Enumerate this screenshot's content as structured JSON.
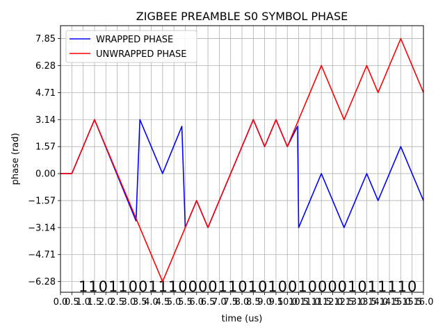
{
  "chart_data": {
    "type": "line",
    "title": "ZIGBEE PREAMBLE S0 SYMBOL PHASE",
    "xlabel": "time (us)",
    "ylabel": "phase (rad)",
    "xlim": [
      0,
      16
    ],
    "ylim": [
      -6.9,
      8.6
    ],
    "grid": true,
    "legend_position": "top-left",
    "xticks": [
      0,
      0.5,
      1,
      1.5,
      2,
      2.5,
      3,
      3.5,
      4,
      4.5,
      5,
      5.5,
      6,
      6.5,
      7,
      7.5,
      8,
      8.5,
      9,
      9.5,
      10,
      10.5,
      11,
      11.5,
      12,
      12.5,
      13,
      13.5,
      14,
      14.5,
      15,
      15.5,
      16
    ],
    "xtick_labels": [
      "0.0",
      "0.5",
      "1.0",
      "1.5",
      "2.0",
      "2.5",
      "3.0",
      "3.5",
      "4.0",
      "4.5",
      "5.0",
      "5.5",
      "6.0",
      "6.5",
      "7.0",
      "7.5",
      "8.0",
      "8.5",
      "9.0",
      "9.5",
      "10.0",
      "10.5",
      "11.0",
      "11.5",
      "12.0",
      "12.5",
      "13.0",
      "13.5",
      "14.0",
      "14.5",
      "15.0",
      "15.5",
      "16.0"
    ],
    "yticks": [
      -6.28,
      -4.71,
      -3.14,
      -1.57,
      0,
      1.57,
      3.14,
      4.71,
      6.28,
      7.85
    ],
    "ytick_labels": [
      "−6.28",
      "−4.71",
      "−3.14",
      "−1.57",
      "0.00",
      "1.57",
      "3.14",
      "4.71",
      "6.28",
      "7.85"
    ],
    "bits": "1101100111000011010100100001011110",
    "series": [
      {
        "name": "WRAPPED PHASE",
        "color": "#0000ff",
        "x": [
          0,
          0.5,
          1.5,
          3.33,
          3.5,
          4.5,
          5.35,
          5.5,
          6,
          6.5,
          8.5,
          9,
          9.5,
          10,
          10.45,
          10.5,
          11.5,
          12.5,
          13.5,
          14,
          15,
          16
        ],
        "y": [
          0,
          0,
          3.14,
          -2.75,
          3.14,
          0,
          2.75,
          -3.14,
          -1.57,
          -3.14,
          3.14,
          1.57,
          3.14,
          1.57,
          2.75,
          -3.14,
          0,
          -3.14,
          0,
          -1.57,
          1.57,
          -1.57
        ]
      },
      {
        "name": "UNWRAPPED PHASE",
        "color": "#ff0000",
        "x": [
          0,
          0.5,
          1.5,
          4.5,
          6,
          6.5,
          8.5,
          9,
          9.5,
          10,
          11.5,
          12.5,
          13.5,
          14,
          15,
          16
        ],
        "y": [
          0,
          0,
          3.14,
          -6.28,
          -1.57,
          -3.14,
          3.14,
          1.57,
          3.14,
          1.57,
          6.28,
          3.14,
          6.28,
          4.71,
          7.85,
          4.71
        ]
      }
    ]
  }
}
